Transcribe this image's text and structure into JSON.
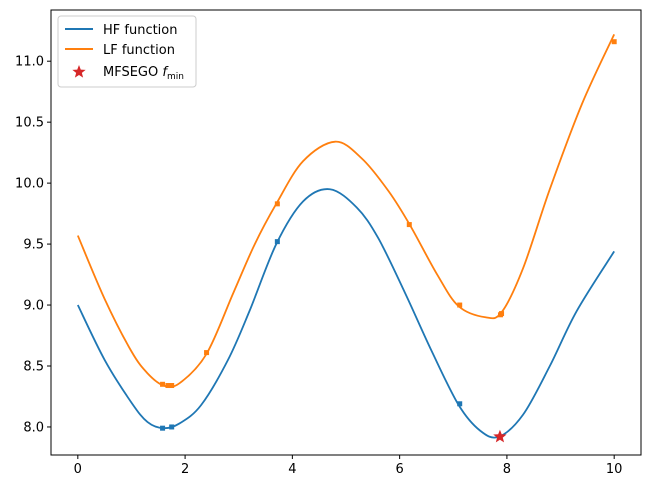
{
  "chart_data": {
    "type": "line",
    "xlim": [
      -0.5,
      10.5
    ],
    "ylim": [
      7.77,
      11.42
    ],
    "x_ticks": [
      0,
      2,
      4,
      6,
      8,
      10
    ],
    "y_ticks": [
      8.0,
      8.5,
      9.0,
      9.5,
      10.0,
      10.5,
      11.0
    ],
    "x_tick_labels": [
      "0",
      "2",
      "4",
      "6",
      "8",
      "10"
    ],
    "y_tick_labels": [
      "8.0",
      "8.5",
      "9.0",
      "9.5",
      "10.0",
      "10.5",
      "11.0"
    ],
    "grid": false,
    "legend": "top-left",
    "series": [
      {
        "name": "HF function",
        "color": "#1f77b4",
        "x": [
          0,
          0.5,
          1.0,
          1.3,
          1.6,
          1.9,
          2.3,
          2.8,
          3.2,
          3.7,
          4.2,
          4.7,
          5.2,
          5.6,
          6.1,
          6.6,
          7.1,
          7.5,
          7.85,
          8.3,
          8.8,
          9.3,
          10.0
        ],
        "y": [
          9.0,
          8.55,
          8.2,
          8.04,
          7.99,
          8.03,
          8.18,
          8.55,
          8.95,
          9.5,
          9.85,
          9.95,
          9.8,
          9.55,
          9.1,
          8.62,
          8.18,
          7.97,
          7.92,
          8.1,
          8.5,
          8.95,
          9.44
        ]
      },
      {
        "name": "LF function",
        "color": "#ff7f0e",
        "x": [
          0,
          0.5,
          1.0,
          1.3,
          1.6,
          1.9,
          2.4,
          2.9,
          3.3,
          3.7,
          4.2,
          4.8,
          5.3,
          5.8,
          6.2,
          6.7,
          7.1,
          7.6,
          7.9,
          8.3,
          8.8,
          9.4,
          10.0
        ],
        "y": [
          9.57,
          9.05,
          8.62,
          8.44,
          8.34,
          8.36,
          8.6,
          9.1,
          9.5,
          9.83,
          10.18,
          10.34,
          10.2,
          9.93,
          9.65,
          9.25,
          8.99,
          8.9,
          8.94,
          9.3,
          9.95,
          10.65,
          11.22
        ]
      }
    ],
    "samples": [
      {
        "series": "HF function",
        "x": [
          1.58,
          1.75,
          3.72,
          7.12
        ],
        "y": [
          7.99,
          8.0,
          9.52,
          8.19
        ]
      },
      {
        "series": "LF function",
        "x": [
          1.58,
          1.68,
          1.75,
          2.4,
          3.72,
          6.18,
          7.12,
          7.88,
          7.9,
          10.0
        ],
        "y": [
          8.35,
          8.34,
          8.34,
          8.61,
          9.83,
          9.66,
          9.0,
          8.92,
          8.93,
          11.16
        ]
      }
    ],
    "optimum": {
      "name": "MFSEGO",
      "subscript": "min",
      "x": 7.87,
      "y": 7.92,
      "color": "#d62728"
    }
  }
}
